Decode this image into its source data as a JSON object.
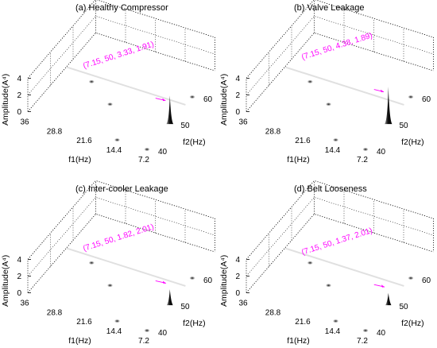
{
  "chart_data": [
    {
      "type": "3d-surface",
      "title": "(a) Healthy Compressor",
      "xlabel": "f1(Hz)",
      "ylabel": "f2(Hz)",
      "zlabel": "Amplitude(A⁴)",
      "x_ticks": [
        "36",
        "28.8",
        "21.6",
        "14.4",
        "7.2"
      ],
      "y_ticks": [
        "40",
        "50",
        "60"
      ],
      "z_ticks": [
        "0",
        "2",
        "4"
      ],
      "annotation": "(7.15, 50, 3.33, 1.91)",
      "peak": {
        "f1": 7.15,
        "f2": 50,
        "amplitude": 3.33,
        "value2": 1.91
      },
      "minor_peaks": [
        {
          "f1": 7.2,
          "f2": 40
        },
        {
          "f1": 14.4,
          "f2": 40
        },
        {
          "f1": 21.6,
          "f2": 50
        },
        {
          "f1": 28.8,
          "f2": 55
        },
        {
          "f1": 7.2,
          "f2": 60
        }
      ]
    },
    {
      "type": "3d-surface",
      "title": "(b) Valve Leakage",
      "xlabel": "f1(Hz)",
      "ylabel": "f2(Hz)",
      "zlabel": "Amplitude(A⁴)",
      "x_ticks": [
        "36",
        "28.8",
        "21.6",
        "14.4",
        "7.2"
      ],
      "y_ticks": [
        "40",
        "50",
        "60"
      ],
      "z_ticks": [
        "0",
        "2",
        "4"
      ],
      "annotation": "(7.15, 50, 4.38, 1.89)",
      "peak": {
        "f1": 7.15,
        "f2": 50,
        "amplitude": 4.38,
        "value2": 1.89
      },
      "minor_peaks": [
        {
          "f1": 7.2,
          "f2": 40
        },
        {
          "f1": 14.4,
          "f2": 40
        },
        {
          "f1": 21.6,
          "f2": 50
        },
        {
          "f1": 28.8,
          "f2": 55
        },
        {
          "f1": 7.2,
          "f2": 60
        }
      ]
    },
    {
      "type": "3d-surface",
      "title": "(c) Inter-cooler Leakage",
      "xlabel": "f1(Hz)",
      "ylabel": "f2(Hz)",
      "zlabel": "Amplitude(A⁴)",
      "x_ticks": [
        "36",
        "28.8",
        "21.6",
        "14.4",
        "7.2"
      ],
      "y_ticks": [
        "40",
        "50",
        "60"
      ],
      "z_ticks": [
        "0",
        "2",
        "4"
      ],
      "annotation": "(7.15, 50, 1.82, 2.01)",
      "peak": {
        "f1": 7.15,
        "f2": 50,
        "amplitude": 1.82,
        "value2": 2.01
      },
      "minor_peaks": [
        {
          "f1": 7.2,
          "f2": 40
        },
        {
          "f1": 14.4,
          "f2": 40
        },
        {
          "f1": 21.6,
          "f2": 50
        },
        {
          "f1": 28.8,
          "f2": 55
        },
        {
          "f1": 7.2,
          "f2": 60
        }
      ]
    },
    {
      "type": "3d-surface",
      "title": "(d) Belt Looseness",
      "xlabel": "f1(Hz)",
      "ylabel": "f2(Hz)",
      "zlabel": "Amplitude(A⁴)",
      "x_ticks": [
        "36",
        "28.8",
        "21.6",
        "14.4",
        "7.2"
      ],
      "y_ticks": [
        "40",
        "50",
        "60"
      ],
      "z_ticks": [
        "0",
        "2",
        "4"
      ],
      "annotation": "(7.15, 50, 1.37, 2.01)",
      "peak": {
        "f1": 7.15,
        "f2": 50,
        "amplitude": 1.37,
        "value2": 2.01
      },
      "minor_peaks": [
        {
          "f1": 7.2,
          "f2": 40
        },
        {
          "f1": 14.4,
          "f2": 40
        },
        {
          "f1": 21.6,
          "f2": 50
        },
        {
          "f1": 28.8,
          "f2": 55
        },
        {
          "f1": 7.2,
          "f2": 60
        }
      ]
    }
  ]
}
